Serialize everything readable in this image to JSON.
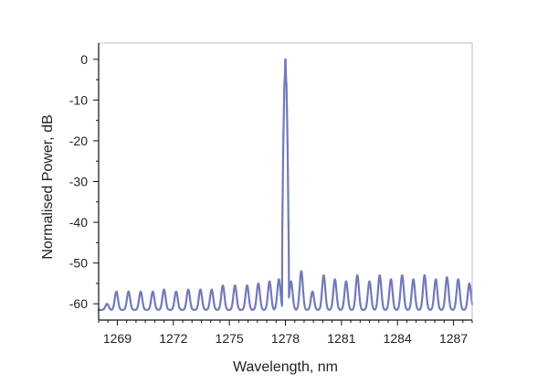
{
  "chart_data": {
    "type": "line",
    "title": "",
    "xlabel": "Wavelength, nm",
    "ylabel": "Normalised Power, dB",
    "xlim": [
      1268.0,
      1288.0
    ],
    "ylim": [
      -64.0,
      4.0
    ],
    "grid": false,
    "legend": "none",
    "x_ticks": [
      1269,
      1272,
      1275,
      1278,
      1281,
      1284,
      1287
    ],
    "y_ticks": [
      0,
      -10,
      -20,
      -30,
      -40,
      -50,
      -60
    ],
    "series": [
      {
        "name": "Normalised Power",
        "color": "#7279bb",
        "baseline": -61.5,
        "peak": {
          "x": 1278.0,
          "y": 0.0
        },
        "side_modes": [
          {
            "x": 1268.45,
            "y": -60.0
          },
          {
            "x": 1268.95,
            "y": -57.0
          },
          {
            "x": 1269.6,
            "y": -57.0
          },
          {
            "x": 1270.25,
            "y": -57.0
          },
          {
            "x": 1270.9,
            "y": -57.0
          },
          {
            "x": 1271.5,
            "y": -56.5
          },
          {
            "x": 1272.15,
            "y": -57.0
          },
          {
            "x": 1272.8,
            "y": -56.5
          },
          {
            "x": 1273.45,
            "y": -56.5
          },
          {
            "x": 1274.05,
            "y": -56.5
          },
          {
            "x": 1274.65,
            "y": -55.5
          },
          {
            "x": 1275.3,
            "y": -55.5
          },
          {
            "x": 1275.95,
            "y": -55.5
          },
          {
            "x": 1276.55,
            "y": -55.0
          },
          {
            "x": 1277.15,
            "y": -54.5
          },
          {
            "x": 1277.65,
            "y": -54.0
          },
          {
            "x": 1278.3,
            "y": -54.5
          },
          {
            "x": 1278.85,
            "y": -52.0
          },
          {
            "x": 1279.45,
            "y": -57.0
          },
          {
            "x": 1280.05,
            "y": -53.0
          },
          {
            "x": 1280.65,
            "y": -54.0
          },
          {
            "x": 1281.25,
            "y": -54.5
          },
          {
            "x": 1281.85,
            "y": -53.0
          },
          {
            "x": 1282.5,
            "y": -54.5
          },
          {
            "x": 1283.05,
            "y": -53.0
          },
          {
            "x": 1283.65,
            "y": -54.0
          },
          {
            "x": 1284.25,
            "y": -53.0
          },
          {
            "x": 1284.85,
            "y": -54.0
          },
          {
            "x": 1285.45,
            "y": -53.0
          },
          {
            "x": 1286.05,
            "y": -54.0
          },
          {
            "x": 1286.65,
            "y": -53.5
          },
          {
            "x": 1287.25,
            "y": -54.0
          },
          {
            "x": 1287.85,
            "y": -55.0
          }
        ]
      }
    ]
  }
}
